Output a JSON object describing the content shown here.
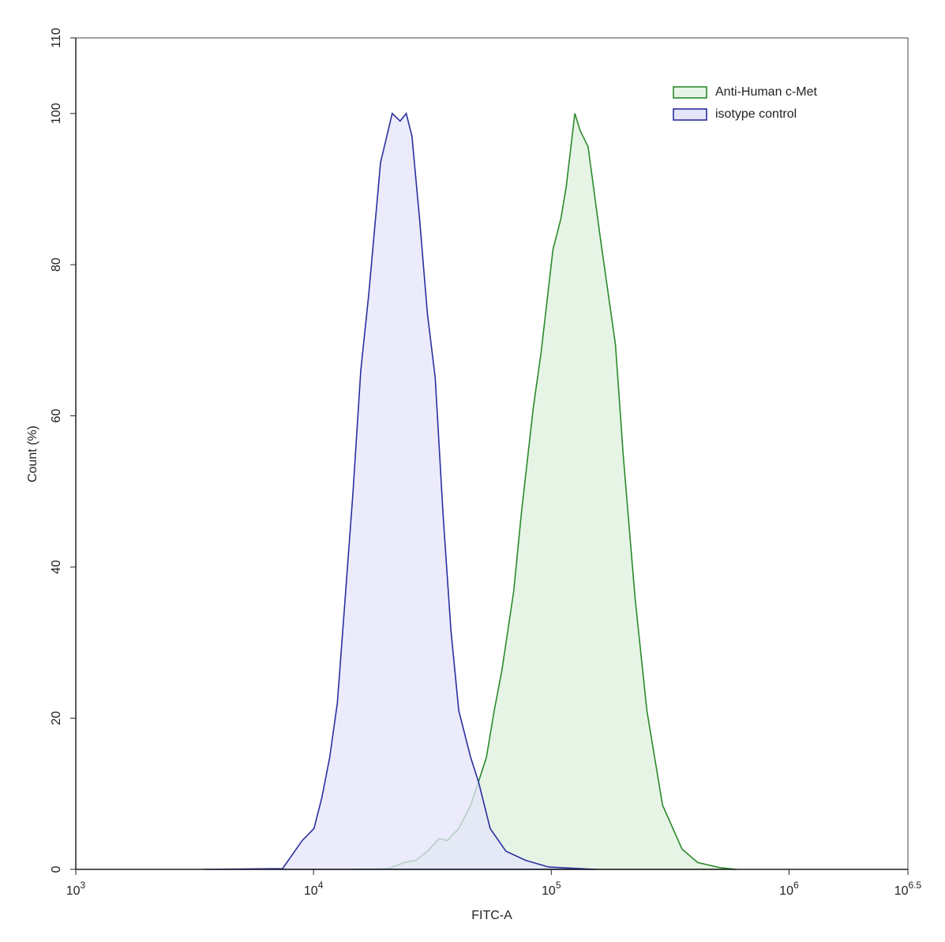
{
  "chart_data": {
    "type": "histogram-overlay",
    "xlabel": "FITC-A",
    "ylabel": "Count (%)",
    "xscale": "log",
    "xlim": [
      1000,
      3162278
    ],
    "ylim": [
      0,
      110
    ],
    "xticks": [
      {
        "value": 1000,
        "label": "10",
        "exponent": "3"
      },
      {
        "value": 10000,
        "label": "10",
        "exponent": "4"
      },
      {
        "value": 100000,
        "label": "10",
        "exponent": "5"
      },
      {
        "value": 1000000,
        "label": "10",
        "exponent": "6"
      },
      {
        "value": 3162278,
        "label": "10",
        "exponent": "6.5"
      }
    ],
    "yticks": [
      0,
      20,
      40,
      60,
      80,
      100,
      110
    ],
    "legend": "upper right",
    "series": [
      {
        "name": "Anti-Human c-Met",
        "color": "#2a8a2a",
        "fill": "#e6f4e6",
        "x": [
          14660,
          20650,
          24040,
          26920,
          30130,
          33810,
          36480,
          40810,
          45810,
          49430,
          53330,
          57540,
          61950,
          69500,
          74990,
          83950,
          90570,
          101600,
          109600,
          115600,
          125600,
          132400,
          142800,
          160000,
          186200,
          200900,
          225300,
          252400,
          293800,
          354800,
          413000,
          518800,
          603500
        ],
        "values": [
          0,
          0.1,
          0.9,
          1.2,
          2.4,
          4.1,
          3.8,
          5.4,
          8.5,
          11.6,
          14.8,
          21,
          26.3,
          36.8,
          47.3,
          61,
          68.3,
          82,
          86,
          90.3,
          100,
          97.7,
          95.6,
          84,
          69.4,
          54.7,
          35.8,
          21,
          8.5,
          2.7,
          0.9,
          0.2,
          0
        ]
      },
      {
        "name": "isotype control",
        "color": "#2a2f9e",
        "fill": "#e4e4fa",
        "x": [
          3467,
          7413,
          8954,
          10040,
          10840,
          11690,
          12590,
          13590,
          14660,
          15810,
          17060,
          19140,
          21430,
          23120,
          24550,
          25940,
          27930,
          30130,
          32510,
          35070,
          37840,
          40810,
          45810,
          49430,
          55340,
          64420,
          77870,
          97720,
          154200
        ],
        "values": [
          0,
          0.1,
          3.8,
          5.4,
          9.5,
          14.8,
          22,
          36,
          50,
          66,
          76,
          93.5,
          100,
          99,
          100,
          97,
          86,
          73.5,
          65,
          47,
          31.6,
          21,
          14.8,
          11.6,
          5.4,
          2.4,
          1.2,
          0.3,
          0
        ]
      }
    ]
  }
}
